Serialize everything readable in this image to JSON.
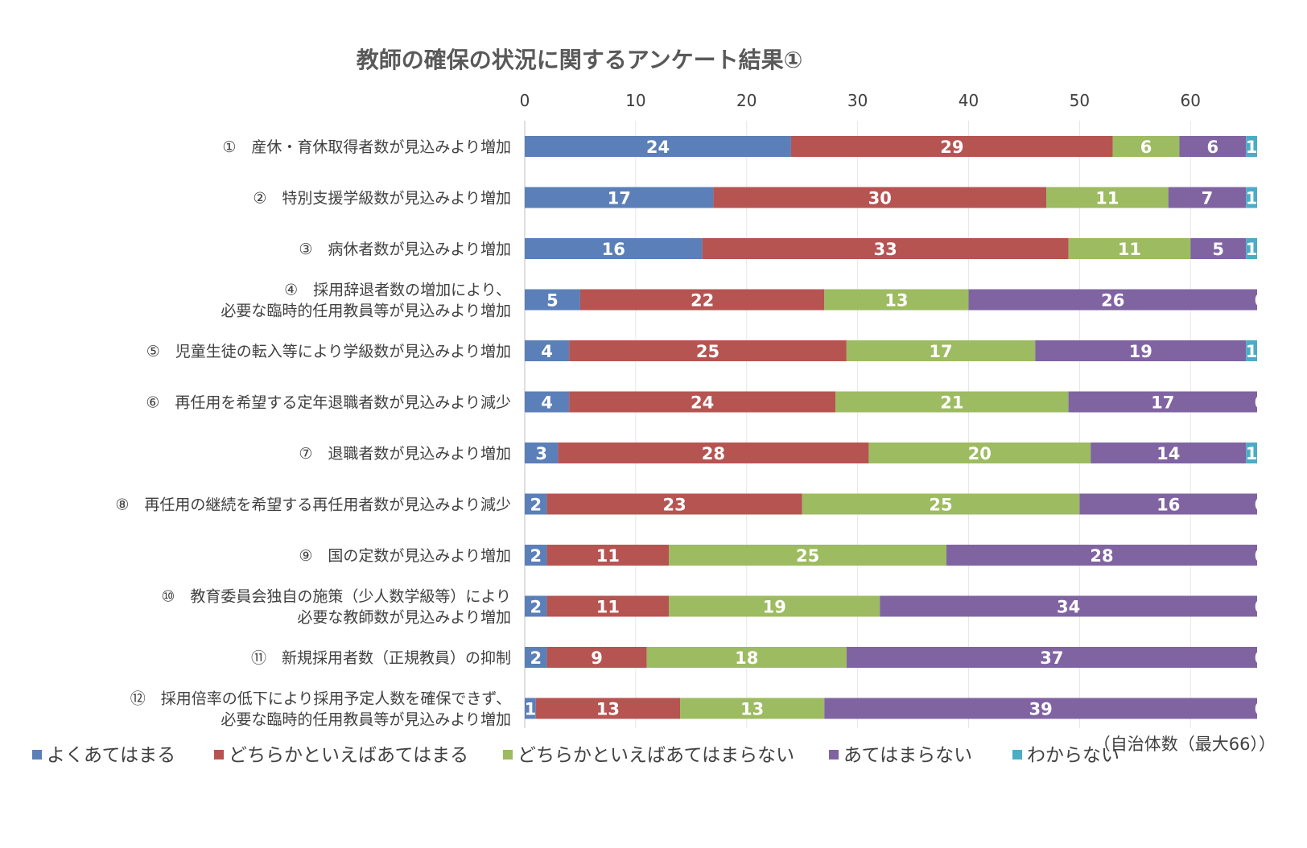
{
  "chart_data": {
    "type": "bar",
    "orientation": "horizontal",
    "stacked": true,
    "title": "教師の確保の状況に関するアンケート結果①",
    "unit_note": "（自治体数（最大66））",
    "xlim": [
      0,
      66
    ],
    "x_ticks": [
      0,
      10,
      20,
      30,
      40,
      50,
      60
    ],
    "x_axis_position": "top",
    "legend_position": "bottom",
    "categories": [
      [
        "①　産休・育休取得者数が見込みより増加"
      ],
      [
        "②　特別支援学級数が見込みより増加"
      ],
      [
        "③　病休者数が見込みより増加"
      ],
      [
        "④　採用辞退者数の増加により、",
        "必要な臨時的任用教員等が見込みより増加"
      ],
      [
        "⑤　児童生徒の転入等により学級数が見込みより増加"
      ],
      [
        "⑥　再任用を希望する定年退職者数が見込みより減少"
      ],
      [
        "⑦　退職者数が見込みより増加"
      ],
      [
        "⑧　再任用の継続を希望する再任用者数が見込みより減少"
      ],
      [
        "⑨　国の定数が見込みより増加"
      ],
      [
        "⑩　教育委員会独自の施策（少人数学級等）により",
        "必要な教師数が見込みより増加"
      ],
      [
        "⑪　新規採用者数（正規教員）の抑制"
      ],
      [
        "⑫　採用倍率の低下により採用予定人数を確保できず、",
        "必要な臨時的任用教員等が見込みより増加"
      ]
    ],
    "series": [
      {
        "name": "よくあてはまる",
        "color": "#5b7fb8",
        "values": [
          24,
          17,
          16,
          5,
          4,
          4,
          3,
          2,
          2,
          2,
          2,
          1
        ]
      },
      {
        "name": "どちらかといえばあてはまる",
        "color": "#b65452",
        "values": [
          29,
          30,
          33,
          22,
          25,
          24,
          28,
          23,
          11,
          11,
          9,
          13
        ]
      },
      {
        "name": "どちらかといえばあてはまらない",
        "color": "#9dbb61",
        "values": [
          6,
          11,
          11,
          13,
          17,
          21,
          20,
          25,
          25,
          19,
          18,
          13
        ]
      },
      {
        "name": "あてはまらない",
        "color": "#8064a2",
        "values": [
          6,
          7,
          5,
          26,
          19,
          17,
          14,
          16,
          28,
          34,
          37,
          39
        ]
      },
      {
        "name": "わからない",
        "color": "#4bacc6",
        "values": [
          1,
          1,
          1,
          0,
          1,
          0,
          1,
          0,
          0,
          0,
          0,
          0
        ]
      }
    ]
  }
}
